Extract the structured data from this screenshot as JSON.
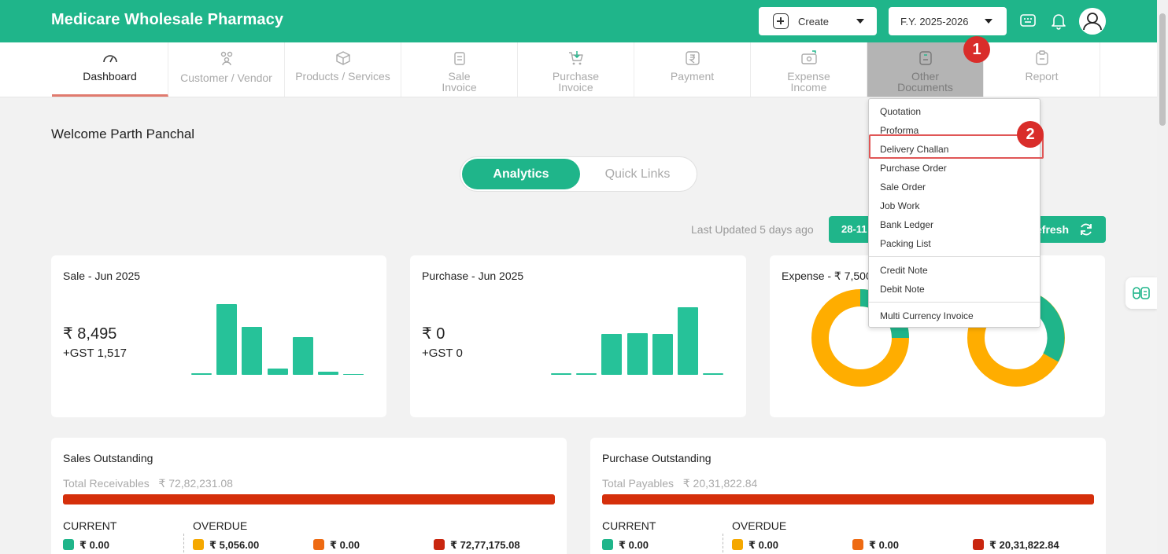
{
  "header": {
    "brand": "Medicare Wholesale Pharmacy",
    "create_label": "Create",
    "fy_label": "F.Y. 2025-2026"
  },
  "nav": {
    "items": [
      {
        "label": "Dashboard",
        "icon": "gauge-icon"
      },
      {
        "label": "Customer / Vendor",
        "icon": "users-icon"
      },
      {
        "label": "Products / Services",
        "icon": "box-icon"
      },
      {
        "label": "Sale",
        "label2": "Invoice",
        "icon": "invoice-icon"
      },
      {
        "label": "Purchase",
        "label2": "Invoice",
        "icon": "cart-icon"
      },
      {
        "label": "Payment",
        "icon": "rupee-icon"
      },
      {
        "label": "Expense",
        "label2": "Income",
        "icon": "cash-icon"
      },
      {
        "label": "Other",
        "label2": "Documents",
        "icon": "document-icon"
      },
      {
        "label": "Report",
        "icon": "clipboard-icon"
      }
    ]
  },
  "badges": {
    "one": "1",
    "two": "2"
  },
  "dashboard": {
    "welcome": "Welcome Parth Panchal",
    "tab_active": "Analytics",
    "tab_inactive": "Quick Links",
    "last_updated": "Last Updated 5 days ago",
    "date_btn": "28-11",
    "refresh_btn": "efresh"
  },
  "cards": {
    "sale": {
      "title": "Sale - Jun 2025",
      "amount": "₹ 8,495",
      "gst": "+GST 1,517",
      "bars": [
        0.02,
        1.0,
        0.68,
        0.09,
        0.53,
        0.05,
        0.01
      ]
    },
    "purchase": {
      "title": "Purchase - Jun 2025",
      "amount": "₹ 0",
      "gst": "+GST 0",
      "bars": [
        0.02,
        0.02,
        0.6,
        0.62,
        0.6,
        1.0,
        0.02
      ]
    },
    "expense": {
      "title": "Expense - ₹ 7,500"
    }
  },
  "sales_outstanding": {
    "title": "Sales Outstanding",
    "total_label": "Total Receivables",
    "total_value": "₹ 72,82,231.08",
    "current_label": "CURRENT",
    "overdue_label": "OVERDUE",
    "current_value": "₹ 0.00",
    "overdue_values": [
      "₹ 5,056.00",
      "₹ 0.00",
      "₹ 72,77,175.08"
    ]
  },
  "purchase_outstanding": {
    "title": "Purchase Outstanding",
    "total_label": "Total Payables",
    "total_value": "₹ 20,31,822.84",
    "current_label": "CURRENT",
    "overdue_label": "OVERDUE",
    "current_value": "₹ 0.00",
    "overdue_values": [
      "₹ 0.00",
      "₹ 0.00",
      "₹ 20,31,822.84"
    ]
  },
  "dropdown": {
    "group1": [
      "Quotation",
      "Proforma",
      "Delivery Challan",
      "Purchase Order",
      "Sale Order",
      "Job Work",
      "Bank Ledger",
      "Packing List"
    ],
    "group2": [
      "Credit Note",
      "Debit Note"
    ],
    "group3": [
      "Multi Currency Invoice"
    ]
  },
  "colors": {
    "brand": "#1fb58a",
    "bar": "#26c299",
    "donut_orange": "#ffad00",
    "red_bar": "#d52f0b",
    "legend_teal": "#1fb58a",
    "legend_yellow": "#f5a800",
    "legend_orange": "#ee6a12",
    "legend_red": "#c9260f",
    "badge_red": "#d92d2a"
  }
}
